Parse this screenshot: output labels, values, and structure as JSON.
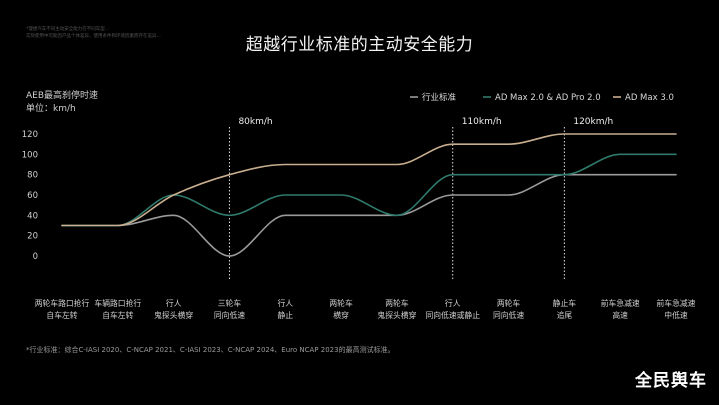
{
  "disclaimer": {
    "line1": "*理想汽车不同主动安全能力在不同车型...",
    "line2": "实际使用中可能因产品个体差异、使用条件和环境因素而存在差异..."
  },
  "title": "超越行业标准的主动安全能力",
  "y_title_line1": "AEB最高刹停时速",
  "y_title_line2": "单位：km/h",
  "footnote": "*行业标准：综合C-IASI 2020、C-NCAP 2021、C-IASI 2023、C-NCAP 2024、Euro NCAP 2023的最高测试标准。",
  "watermark": "全民舆车",
  "chart_data": {
    "type": "line",
    "categories": [
      [
        "两轮车路口抢行",
        "自车左转"
      ],
      [
        "车辆路口抢行",
        "自车左转"
      ],
      [
        "行人",
        "鬼探头横穿"
      ],
      [
        "三轮车",
        "同向低速"
      ],
      [
        "行人",
        "静止"
      ],
      [
        "两轮车",
        "横穿"
      ],
      [
        "两轮车",
        "鬼探头横穿"
      ],
      [
        "行人",
        "同向低速或静止"
      ],
      [
        "两轮车",
        "同向低速"
      ],
      [
        "静止车",
        "追尾"
      ],
      [
        "前车急减速",
        "高速"
      ],
      [
        "前车急减速",
        "中低速"
      ]
    ],
    "ylabel": "AEB最高刹停时速",
    "yunit": "单位：km/h",
    "ylim": [
      0,
      120
    ],
    "yticks": [
      0,
      20,
      40,
      60,
      80,
      100,
      120
    ],
    "grid": false,
    "legend_position": "top-right",
    "series": [
      {
        "name": "行业标准",
        "color": "#9a9a9a",
        "values": [
          30,
          30,
          40,
          0,
          40,
          40,
          40,
          60,
          60,
          80,
          80,
          80
        ]
      },
      {
        "name": "AD Max 2.0 & AD Pro 2.0",
        "color": "#2f7a6c",
        "values": [
          30,
          30,
          60,
          40,
          60,
          60,
          40,
          80,
          80,
          80,
          100,
          100
        ]
      },
      {
        "name": "AD Max 3.0",
        "color": "#c8ae8f",
        "values": [
          30,
          30,
          60,
          80,
          90,
          90,
          90,
          110,
          110,
          120,
          120,
          120
        ]
      }
    ],
    "annotations": [
      {
        "category_index": 3,
        "label": "80km/h"
      },
      {
        "category_index": 7,
        "label": "110km/h"
      },
      {
        "category_index": 9,
        "label": "120km/h"
      }
    ]
  }
}
